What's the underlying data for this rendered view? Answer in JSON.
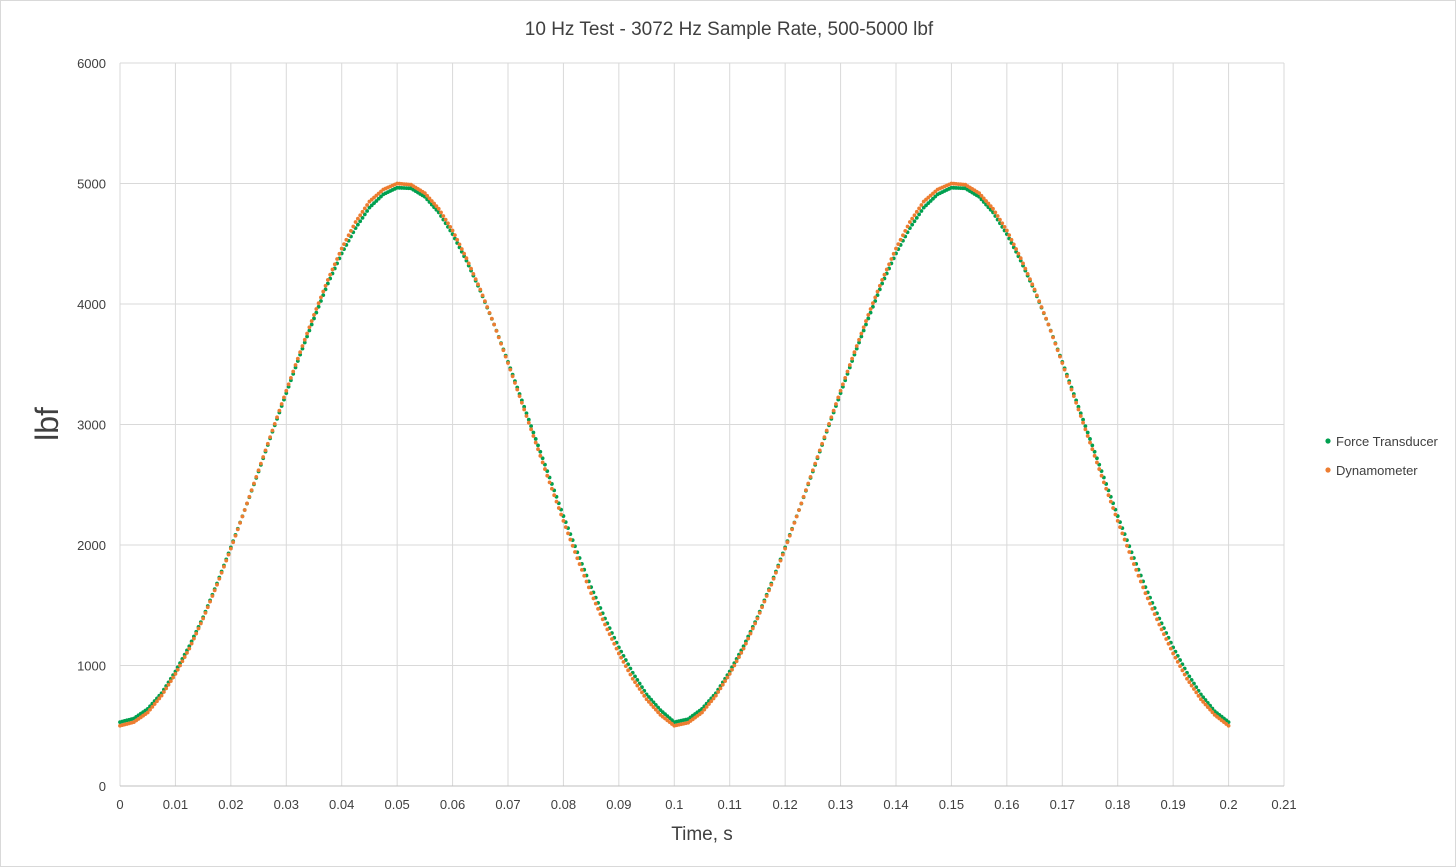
{
  "chart_data": {
    "type": "scatter",
    "title": "10 Hz Test - 3072 Hz Sample Rate, 500-5000 lbf",
    "xlabel": "Time, s",
    "ylabel": "lbf",
    "xlim": [
      0,
      0.21
    ],
    "ylim": [
      0,
      6000
    ],
    "x_ticks": [
      "0",
      "0.01",
      "0.02",
      "0.03",
      "0.04",
      "0.05",
      "0.06",
      "0.07",
      "0.08",
      "0.09",
      "0.1",
      "0.11",
      "0.12",
      "0.13",
      "0.14",
      "0.15",
      "0.16",
      "0.17",
      "0.18",
      "0.19",
      "0.2",
      "0.21"
    ],
    "y_ticks": [
      "0",
      "1000",
      "2000",
      "3000",
      "4000",
      "5000",
      "6000"
    ],
    "grid": true,
    "legend_position": "right",
    "x": [
      0,
      0.0025,
      0.005,
      0.0075,
      0.01,
      0.0125,
      0.015,
      0.0175,
      0.02,
      0.0225,
      0.025,
      0.0275,
      0.03,
      0.0325,
      0.035,
      0.0375,
      0.04,
      0.0425,
      0.045,
      0.0475,
      0.05,
      0.0525,
      0.055,
      0.0575,
      0.06,
      0.0625,
      0.065,
      0.0675,
      0.07,
      0.0725,
      0.075,
      0.0775,
      0.08,
      0.0825,
      0.085,
      0.0875,
      0.09,
      0.0925,
      0.095,
      0.0975,
      0.1,
      0.1025,
      0.105,
      0.1075,
      0.11,
      0.1125,
      0.115,
      0.1175,
      0.12,
      0.1225,
      0.125,
      0.1275,
      0.13,
      0.1325,
      0.135,
      0.1375,
      0.14,
      0.1425,
      0.145,
      0.1475,
      0.15,
      0.1525,
      0.155,
      0.1575,
      0.16,
      0.1625,
      0.165,
      0.1675,
      0.17,
      0.1725,
      0.175,
      0.1775,
      0.18,
      0.1825,
      0.185,
      0.1875,
      0.19,
      0.1925,
      0.195,
      0.1975,
      0.2
    ],
    "series": [
      {
        "name": "Force Transducer",
        "color": "#00a050",
        "values": [
          530,
          560,
          640,
          770,
          950,
          1160,
          1400,
          1680,
          1980,
          2290,
          2610,
          2940,
          3260,
          3580,
          3880,
          4170,
          4420,
          4630,
          4800,
          4910,
          4965,
          4960,
          4890,
          4760,
          4580,
          4360,
          4110,
          3830,
          3520,
          3200,
          2880,
          2560,
          2240,
          1940,
          1650,
          1390,
          1150,
          940,
          760,
          630,
          530,
          555,
          640,
          770,
          950,
          1160,
          1400,
          1680,
          1980,
          2290,
          2610,
          2940,
          3260,
          3580,
          3880,
          4170,
          4420,
          4630,
          4800,
          4910,
          4965,
          4960,
          4890,
          4760,
          4580,
          4360,
          4110,
          3830,
          3520,
          3200,
          2880,
          2560,
          2240,
          1940,
          1650,
          1390,
          1150,
          940,
          760,
          620,
          530
        ]
      },
      {
        "name": "Dynamometer",
        "color": "#ed7d31",
        "values": [
          500,
          530,
          610,
          750,
          930,
          1140,
          1390,
          1670,
          1970,
          2290,
          2620,
          2950,
          3280,
          3600,
          3910,
          4200,
          4460,
          4680,
          4850,
          4950,
          5000,
          4990,
          4920,
          4790,
          4610,
          4380,
          4120,
          3830,
          3510,
          3180,
          2850,
          2520,
          2200,
          1890,
          1600,
          1340,
          1100,
          890,
          720,
          590,
          500,
          525,
          610,
          750,
          930,
          1140,
          1390,
          1670,
          1970,
          2290,
          2620,
          2950,
          3280,
          3600,
          3910,
          4200,
          4460,
          4680,
          4850,
          4950,
          5000,
          4990,
          4920,
          4790,
          4610,
          4380,
          4120,
          3830,
          3510,
          3180,
          2850,
          2520,
          2200,
          1890,
          1600,
          1340,
          1100,
          890,
          720,
          590,
          500
        ]
      }
    ]
  }
}
